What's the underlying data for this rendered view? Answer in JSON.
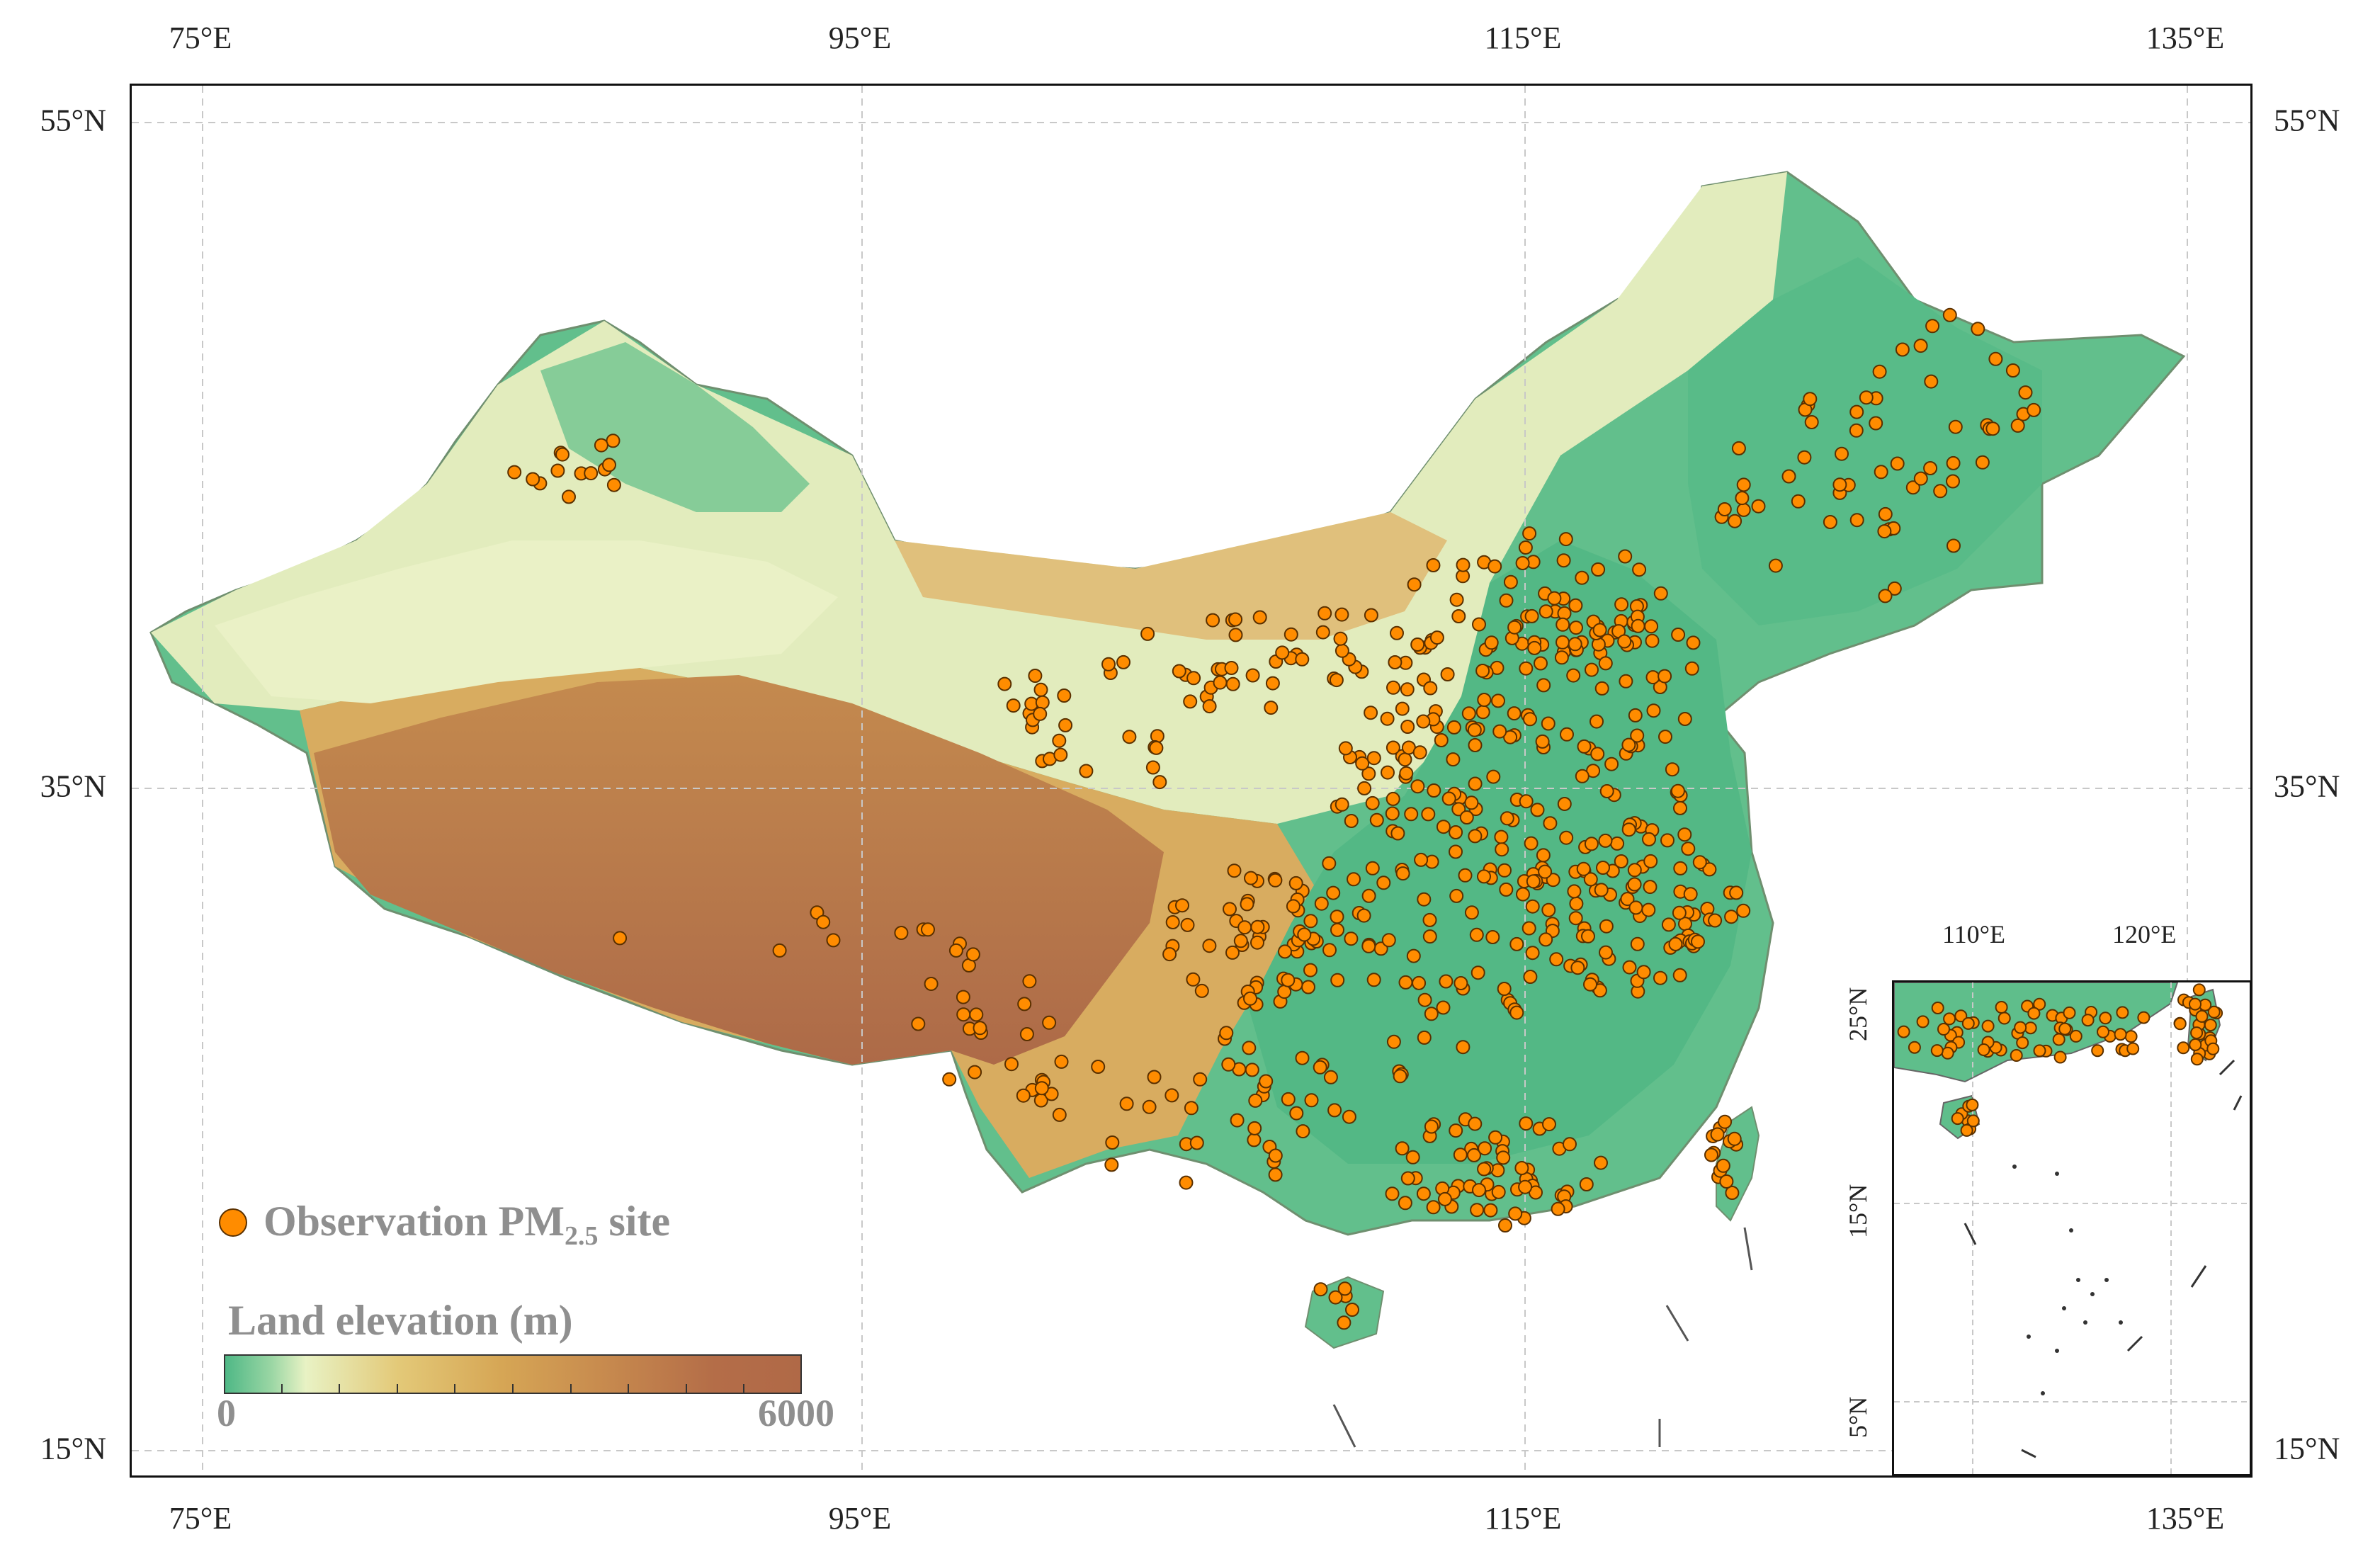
{
  "axes": {
    "lon_ticks": [
      "75°E",
      "95°E",
      "115°E",
      "135°E"
    ],
    "lat_ticks": [
      "55°N",
      "35°N",
      "15°N"
    ]
  },
  "legend": {
    "site_label": "Observation PM",
    "site_subscript": "2.5",
    "site_suffix": " site",
    "elevation_title": "Land elevation (m)",
    "elevation_min": "0",
    "elevation_max": "6000"
  },
  "inset": {
    "lon_ticks": [
      "110°E",
      "120°E"
    ],
    "lat_ticks": [
      "25°N",
      "15°N",
      "5°N"
    ]
  },
  "colors": {
    "site": "#ff8c00",
    "site_edge": "#5a3000",
    "lowland": "#4fb886",
    "plain": "#e8f2c4",
    "midland": "#d6a655",
    "highland": "#b06947",
    "grid": "#c8c8c8"
  }
}
